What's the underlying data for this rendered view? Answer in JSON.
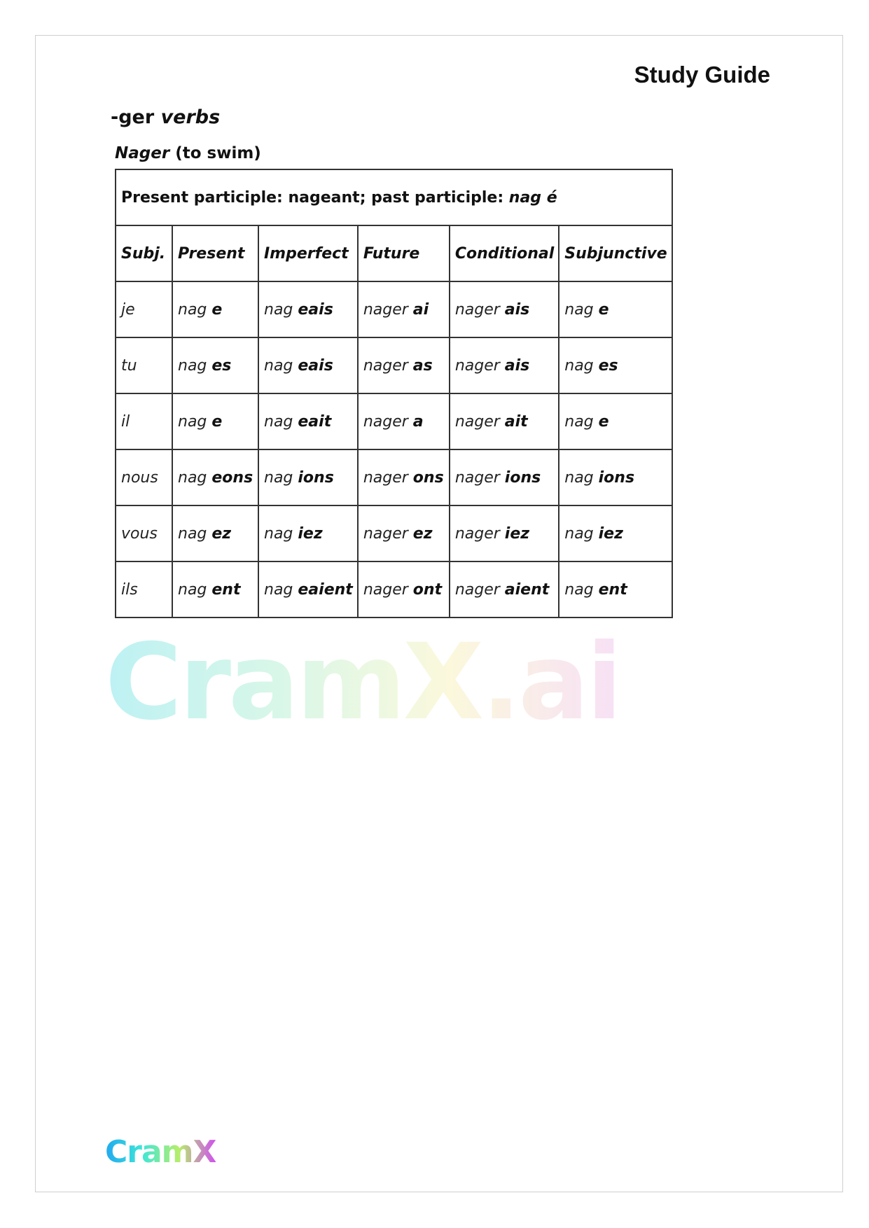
{
  "header": {
    "title": "Study Guide"
  },
  "section": {
    "title_plain": "-ger ",
    "title_italic": "verbs"
  },
  "verb": {
    "name": "Nager",
    "meaning": " (to swim)"
  },
  "participles": {
    "text": "Present participle: nageant; past participle: ",
    "italic": "nag é"
  },
  "columns": [
    "Subj.",
    "Present",
    "Imperfect",
    "Future",
    "Conditional",
    "Subjunctive"
  ],
  "rows": [
    {
      "subj": "je",
      "cells": [
        [
          "nag",
          "e"
        ],
        [
          "nag",
          "eais"
        ],
        [
          "nager",
          "ai"
        ],
        [
          "nager",
          "ais"
        ],
        [
          "nag",
          "e"
        ]
      ]
    },
    {
      "subj": "tu",
      "cells": [
        [
          "nag",
          "es"
        ],
        [
          "nag",
          "eais"
        ],
        [
          "nager",
          "as"
        ],
        [
          "nager",
          "ais"
        ],
        [
          "nag",
          "es"
        ]
      ]
    },
    {
      "subj": "il",
      "cells": [
        [
          "nag",
          "e"
        ],
        [
          "nag",
          "eait"
        ],
        [
          "nager",
          "a"
        ],
        [
          "nager",
          "ait"
        ],
        [
          "nag",
          "e"
        ]
      ]
    },
    {
      "subj": "nous",
      "cells": [
        [
          "nag",
          "eons"
        ],
        [
          "nag",
          "ions"
        ],
        [
          "nager",
          "ons"
        ],
        [
          "nager",
          "ions"
        ],
        [
          "nag",
          "ions"
        ]
      ]
    },
    {
      "subj": "vous",
      "cells": [
        [
          "nag",
          "ez"
        ],
        [
          "nag",
          "iez"
        ],
        [
          "nager",
          "ez"
        ],
        [
          "nager",
          "iez"
        ],
        [
          "nag",
          "iez"
        ]
      ]
    },
    {
      "subj": "ils",
      "cells": [
        [
          "nag",
          "ent"
        ],
        [
          "nag",
          "eaient"
        ],
        [
          "nager",
          "ont"
        ],
        [
          "nager",
          "aient"
        ],
        [
          "nag",
          "ent"
        ]
      ]
    }
  ],
  "watermark": "CramX.ai",
  "logo": "CramX",
  "colors": {
    "logo_start": "#22a8f0",
    "logo_end": "#d050f0"
  }
}
